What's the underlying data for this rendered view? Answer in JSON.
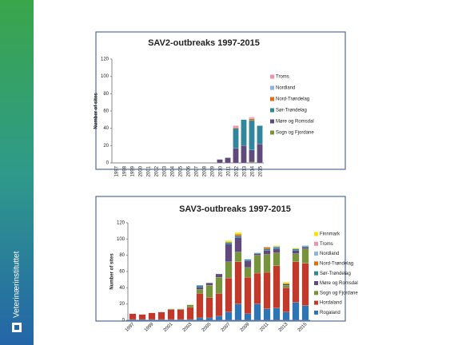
{
  "brand": "Veterinærinstituttet",
  "chart_data": [
    {
      "type": "bar",
      "stacked": true,
      "title": "SAV2-outbreaks 1997-2015",
      "ylabel": "Number of sites",
      "categories": [
        "1997",
        "1998",
        "1999",
        "2000",
        "2001",
        "2002",
        "2003",
        "2004",
        "2005",
        "2006",
        "2007",
        "2008",
        "2009",
        "2010",
        "2011",
        "2012",
        "2013",
        "2014",
        "2015"
      ],
      "ylim": [
        0,
        120
      ],
      "yticks": [
        0,
        20,
        40,
        60,
        80,
        100,
        120
      ],
      "series": [
        {
          "name": "Sogn og Fjordane",
          "color": "#77933c",
          "values": [
            0,
            0,
            0,
            0,
            0,
            0,
            0,
            0,
            0,
            0,
            0,
            0,
            0,
            0,
            0,
            0,
            0,
            1,
            0
          ]
        },
        {
          "name": "Møre og Romsdal",
          "color": "#604a7b",
          "values": [
            0,
            0,
            0,
            0,
            0,
            0,
            0,
            0,
            0,
            0,
            0,
            0,
            0,
            4,
            6,
            17,
            20,
            14,
            22
          ]
        },
        {
          "name": "Sør-Trøndelag",
          "color": "#31859c",
          "values": [
            0,
            0,
            0,
            0,
            0,
            0,
            0,
            0,
            0,
            0,
            0,
            0,
            0,
            0,
            0,
            23,
            30,
            34,
            21
          ]
        },
        {
          "name": "Nord-Trøndelag",
          "color": "#e46c0a",
          "values": [
            0,
            0,
            0,
            0,
            0,
            0,
            0,
            0,
            0,
            0,
            0,
            0,
            0,
            0,
            0,
            1,
            0,
            2,
            0
          ]
        },
        {
          "name": "Nordland",
          "color": "#8db3e2",
          "values": [
            0,
            0,
            0,
            0,
            0,
            0,
            0,
            0,
            0,
            0,
            0,
            0,
            0,
            0,
            0,
            0,
            0,
            1,
            0
          ]
        },
        {
          "name": "Troms",
          "color": "#f28fb0",
          "values": [
            0,
            0,
            0,
            0,
            0,
            0,
            0,
            0,
            0,
            0,
            0,
            0,
            0,
            0,
            0,
            2,
            0,
            1,
            0
          ]
        }
      ]
    },
    {
      "type": "bar",
      "stacked": true,
      "title": "SAV3-outbreaks 1997-2015",
      "ylabel": "Number of sites",
      "categories": [
        "1997",
        null,
        "1999",
        null,
        "2001",
        null,
        "2003",
        null,
        "2005",
        null,
        "2007",
        null,
        "2009",
        null,
        "2011",
        null,
        "2013",
        null,
        "2015"
      ],
      "ylim": [
        0,
        120
      ],
      "yticks": [
        0,
        20,
        40,
        60,
        80,
        100,
        120
      ],
      "series": [
        {
          "name": "Rogaland",
          "color": "#2e75b6",
          "values": [
            1,
            1,
            1,
            1,
            1,
            1,
            1,
            3,
            3,
            5,
            10,
            20,
            8,
            20,
            14,
            15,
            10,
            22,
            18
          ]
        },
        {
          "name": "Hordaland",
          "color": "#c0392b",
          "values": [
            7,
            6,
            8,
            9,
            12,
            12,
            15,
            30,
            25,
            28,
            42,
            52,
            45,
            38,
            45,
            52,
            30,
            50,
            52
          ]
        },
        {
          "name": "Sogn og Fjordane",
          "color": "#77933c",
          "values": [
            0,
            0,
            0,
            0,
            1,
            1,
            3,
            5,
            15,
            20,
            20,
            12,
            12,
            22,
            22,
            16,
            3,
            10,
            18
          ]
        },
        {
          "name": "Møre og Romsdal",
          "color": "#604a7b",
          "values": [
            0,
            0,
            0,
            0,
            0,
            0,
            0,
            3,
            3,
            4,
            22,
            18,
            8,
            2,
            5,
            5,
            2,
            4,
            2
          ]
        },
        {
          "name": "Sør-Trøndelag",
          "color": "#31859c",
          "values": [
            0,
            0,
            0,
            0,
            0,
            0,
            0,
            2,
            0,
            0,
            2,
            2,
            2,
            1,
            2,
            2,
            0,
            2,
            1
          ]
        },
        {
          "name": "Nord-Trøndelag",
          "color": "#e46c0a",
          "values": [
            0,
            0,
            0,
            0,
            0,
            0,
            0,
            0,
            0,
            0,
            0,
            2,
            0,
            0,
            2,
            0,
            0,
            0,
            0
          ]
        },
        {
          "name": "Nordland",
          "color": "#8db3e2",
          "values": [
            0,
            0,
            0,
            0,
            0,
            0,
            0,
            0,
            0,
            0,
            0,
            0,
            0,
            0,
            0,
            1,
            0,
            0,
            1
          ]
        },
        {
          "name": "Troms",
          "color": "#f28fb0",
          "values": [
            0,
            0,
            0,
            0,
            0,
            0,
            0,
            0,
            0,
            0,
            0,
            0,
            0,
            0,
            0,
            0,
            0,
            0,
            0
          ]
        },
        {
          "name": "Finnmark",
          "color": "#f5e600",
          "values": [
            0,
            0,
            0,
            0,
            0,
            0,
            0,
            0,
            0,
            0,
            2,
            2,
            0,
            0,
            0,
            1,
            2,
            1,
            0
          ]
        }
      ]
    }
  ]
}
